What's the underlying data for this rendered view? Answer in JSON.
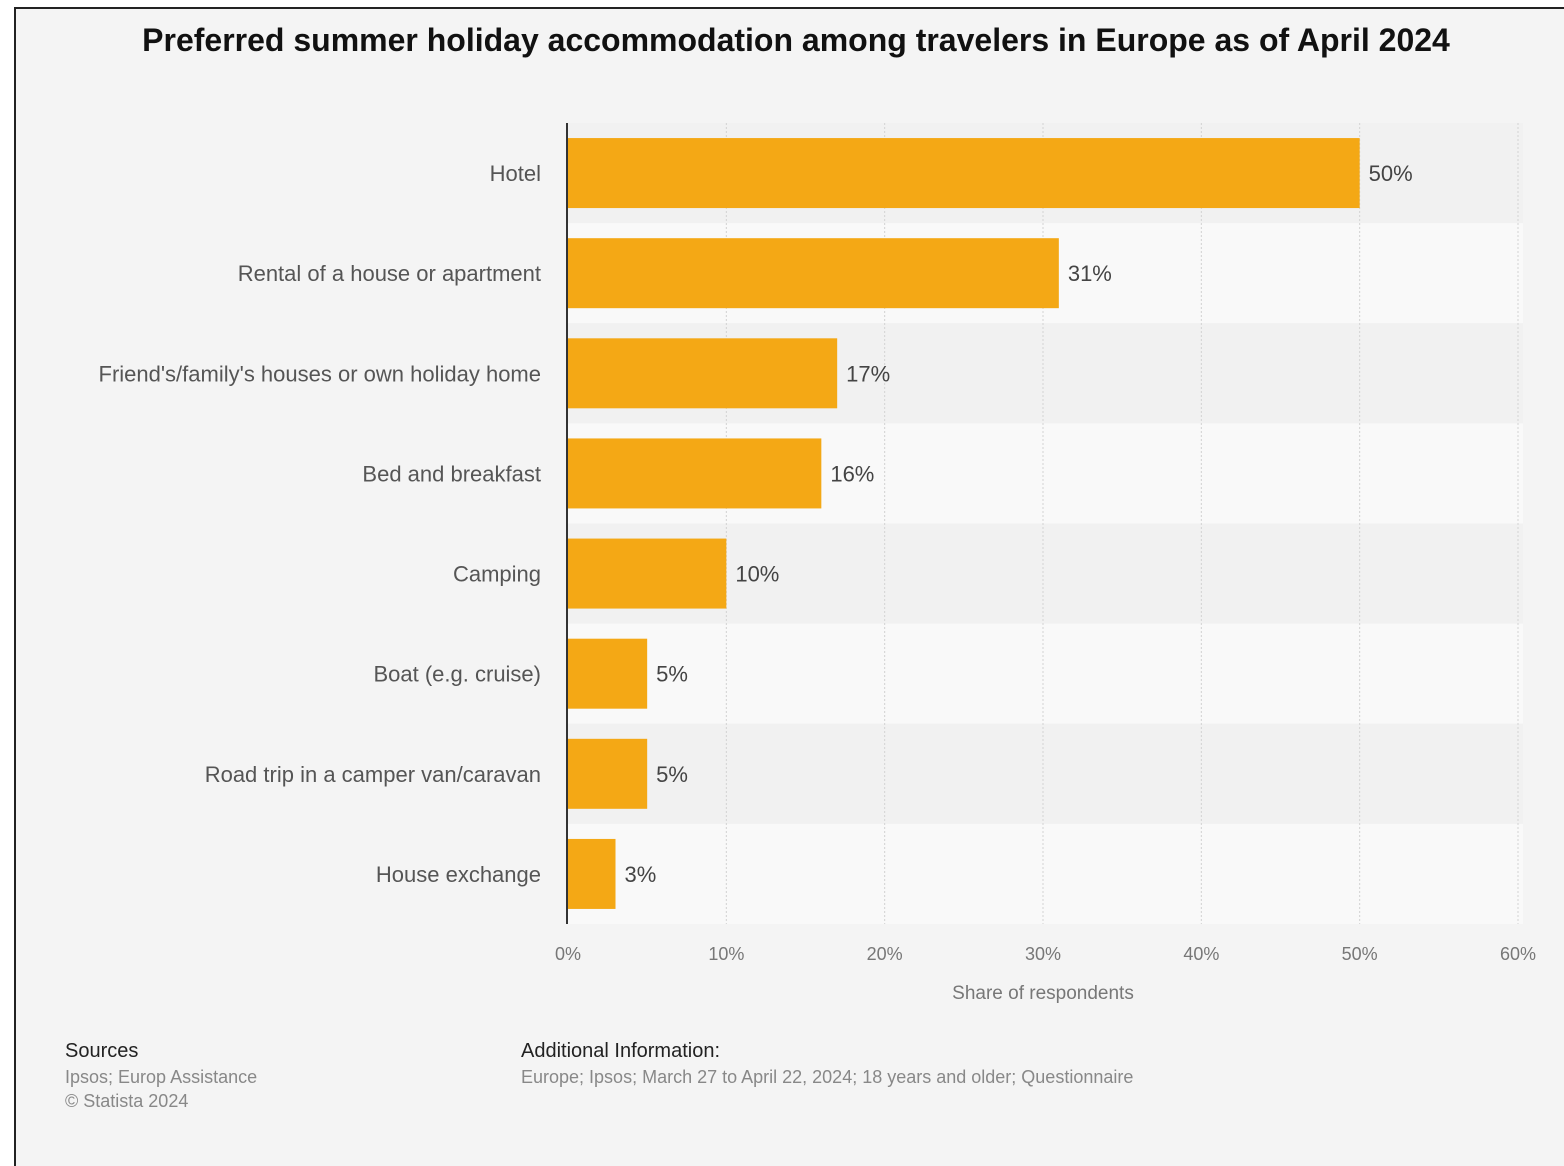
{
  "chart_data": {
    "type": "bar",
    "orientation": "horizontal",
    "title": "Preferred summer holiday accommodation among travelers in Europe as of April 2024",
    "categories": [
      "Hotel",
      "Rental of a house or apartment",
      "Friend's/family's houses or own holiday home",
      "Bed and breakfast",
      "Camping",
      "Boat (e.g. cruise)",
      "Road trip in a camper van/caravan",
      "House exchange"
    ],
    "values": [
      50,
      31,
      17,
      16,
      10,
      5,
      5,
      3
    ],
    "value_labels": [
      "50%",
      "31%",
      "17%",
      "16%",
      "10%",
      "5%",
      "5%",
      "3%"
    ],
    "xlabel": "Share of respondents",
    "xlim": [
      0,
      60
    ],
    "xticks": [
      0,
      10,
      20,
      30,
      40,
      50,
      60
    ],
    "xtick_labels": [
      "0%",
      "10%",
      "20%",
      "30%",
      "40%",
      "50%",
      "60%"
    ],
    "grid": true,
    "bar_color": "#f4a815"
  },
  "footer": {
    "sources_heading": "Sources",
    "sources_line1": "Ipsos; Europ Assistance",
    "sources_line2": "© Statista 2024",
    "additional_heading": "Additional Information:",
    "additional_text": "Europe; Ipsos; March 27 to April 22, 2024; 18 years and older; Questionnaire"
  }
}
